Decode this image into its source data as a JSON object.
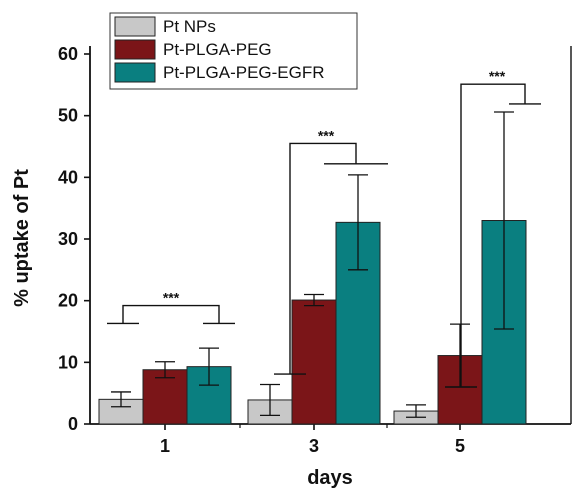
{
  "chart_data": {
    "type": "bar",
    "xlabel": "days",
    "ylabel": "% uptake of Pt",
    "categories": [
      "1",
      "3",
      "5"
    ],
    "ylim": [
      0,
      60
    ],
    "yticks": [
      0,
      10,
      20,
      30,
      40,
      50,
      60
    ],
    "legend_position": "top-left",
    "series": [
      {
        "name": "Pt NPs",
        "color": "#c8c8c8",
        "values": [
          4.0,
          3.9,
          2.1
        ],
        "errors": [
          1.2,
          2.5,
          1.0
        ]
      },
      {
        "name": "Pt-PLGA-PEG",
        "color": "#7b1518",
        "values": [
          8.8,
          20.1,
          11.1
        ],
        "errors": [
          1.3,
          0.9,
          5.1
        ]
      },
      {
        "name": "Pt-PLGA-PEG-EGFR",
        "color": "#0a7f80",
        "values": [
          9.3,
          32.7,
          33.0
        ],
        "errors": [
          3.0,
          7.7,
          17.6
        ]
      }
    ],
    "annotations": [
      {
        "category": "1",
        "text": "***"
      },
      {
        "category": "3",
        "text": "***"
      },
      {
        "category": "5",
        "text": "***"
      }
    ]
  }
}
